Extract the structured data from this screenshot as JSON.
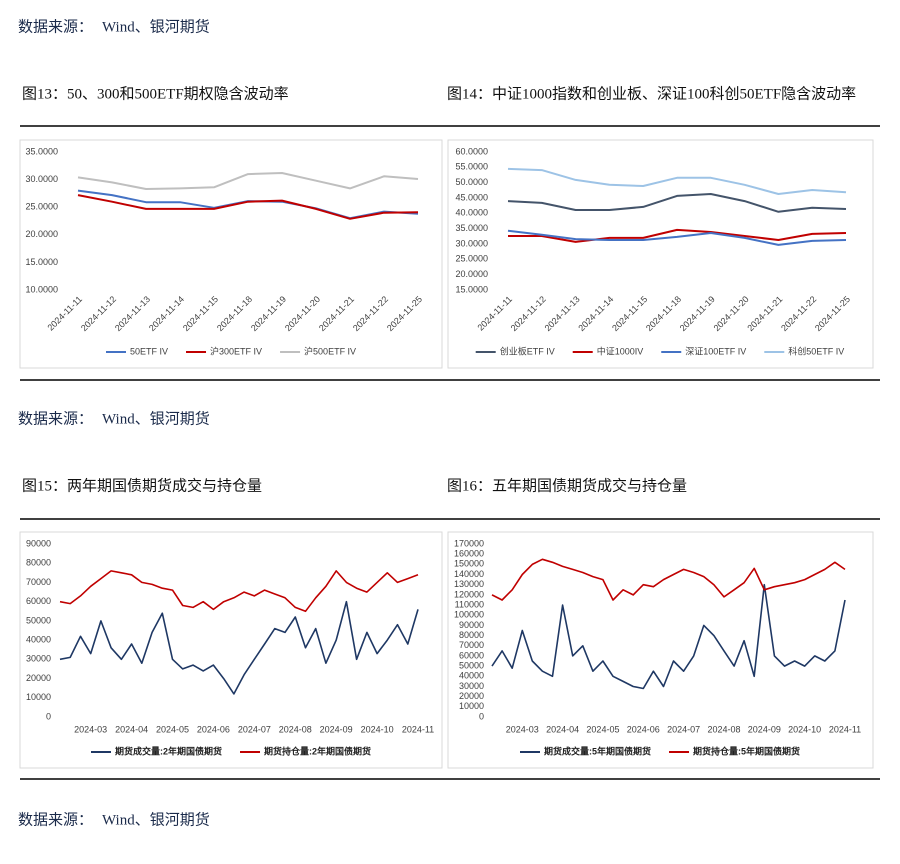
{
  "source_notes": [
    {
      "label": "数据来源：",
      "value": "Wind、银河期货"
    },
    {
      "label": "数据来源：",
      "value": "Wind、银河期货"
    },
    {
      "label": "数据来源：",
      "value": "Wind、银河期货"
    }
  ],
  "chart_data": [
    {
      "type": "line",
      "title": "图13：50、300和500ETF期权隐含波动率",
      "categories": [
        "2024-11-11",
        "2024-11-12",
        "2024-11-13",
        "2024-11-14",
        "2024-11-15",
        "2024-11-18",
        "2024-11-19",
        "2024-11-20",
        "2024-11-21",
        "2024-11-22",
        "2024-11-25"
      ],
      "series": [
        {
          "name": "50ETF IV",
          "color": "#4472c4",
          "values": [
            28.0,
            27.2,
            25.9,
            25.9,
            24.9,
            26.1,
            26.0,
            24.8,
            23.0,
            24.2,
            23.8
          ]
        },
        {
          "name": "沪300ETF IV",
          "color": "#c00000",
          "values": [
            27.2,
            26.0,
            24.7,
            24.7,
            24.7,
            26.0,
            26.2,
            24.7,
            22.9,
            24.0,
            24.1
          ]
        },
        {
          "name": "沪500ETF IV",
          "color": "#bfbfbf",
          "values": [
            30.4,
            29.5,
            28.3,
            28.4,
            28.6,
            31.0,
            31.2,
            29.8,
            28.4,
            30.6,
            30.1
          ]
        }
      ],
      "ylim": [
        10,
        35
      ],
      "yticks": [
        {
          "value": 10,
          "label": "10.0000"
        },
        {
          "value": 15,
          "label": "15.0000"
        },
        {
          "value": 20,
          "label": "20.0000"
        },
        {
          "value": 25,
          "label": "25.0000"
        },
        {
          "value": 30,
          "label": "30.0000"
        },
        {
          "value": 35,
          "label": "35.0000"
        }
      ],
      "grid": false,
      "legend": "bottom"
    },
    {
      "type": "line",
      "title": "图14：中证1000指数和创业板、深证100科创50ETF隐含波动率",
      "categories": [
        "2024-11-11",
        "2024-11-12",
        "2024-11-13",
        "2024-11-14",
        "2024-11-15",
        "2024-11-18",
        "2024-11-19",
        "2024-11-20",
        "2024-11-21",
        "2024-11-22",
        "2024-11-25"
      ],
      "series": [
        {
          "name": "创业板ETF IV",
          "color": "#44546a",
          "values": [
            44.0,
            43.4,
            41.1,
            41.1,
            42.1,
            45.7,
            46.3,
            44.0,
            40.5,
            41.8,
            41.4
          ]
        },
        {
          "name": "中证1000IV",
          "color": "#c00000",
          "values": [
            32.6,
            32.6,
            30.7,
            32.0,
            32.0,
            34.6,
            33.9,
            32.6,
            31.3,
            33.3,
            33.6
          ]
        },
        {
          "name": "深证100ETF IV",
          "color": "#4472c4",
          "values": [
            34.3,
            33.0,
            31.6,
            31.3,
            31.3,
            32.3,
            33.6,
            32.0,
            29.7,
            31.0,
            31.3
          ]
        },
        {
          "name": "科创50ETF IV",
          "color": "#9dc3e6",
          "values": [
            54.5,
            54.1,
            50.9,
            49.3,
            48.9,
            51.6,
            51.6,
            49.3,
            46.3,
            47.6,
            46.9
          ]
        }
      ],
      "ylim": [
        15,
        60
      ],
      "yticks": [
        {
          "value": 15,
          "label": "15.0000"
        },
        {
          "value": 20,
          "label": "20.0000"
        },
        {
          "value": 25,
          "label": "25.0000"
        },
        {
          "value": 30,
          "label": "30.0000"
        },
        {
          "value": 35,
          "label": "35.0000"
        },
        {
          "value": 40,
          "label": "40.0000"
        },
        {
          "value": 45,
          "label": "45.0000"
        },
        {
          "value": 50,
          "label": "50.0000"
        },
        {
          "value": 55,
          "label": "55.0000"
        },
        {
          "value": 60,
          "label": "60.0000"
        }
      ],
      "grid": false,
      "legend": "bottom"
    },
    {
      "type": "line",
      "title": "图15：两年期国债期货成交与持仓量",
      "categories": [
        null,
        null,
        null,
        "2024-03",
        null,
        null,
        null,
        "2024-04",
        null,
        null,
        null,
        "2024-05",
        null,
        null,
        null,
        "2024-06",
        null,
        null,
        null,
        "2024-07",
        null,
        null,
        null,
        "2024-08",
        null,
        null,
        null,
        "2024-09",
        null,
        null,
        null,
        "2024-10",
        null,
        null,
        null,
        "2024-11"
      ],
      "series": [
        {
          "name": "期货成交量:2年期国债期货",
          "color": "#1f3864",
          "values": [
            30000,
            31000,
            42000,
            33000,
            50000,
            36000,
            30000,
            38000,
            28000,
            44000,
            54000,
            30000,
            25000,
            27000,
            24000,
            27000,
            20000,
            12000,
            22000,
            30000,
            38000,
            46000,
            44000,
            52000,
            36000,
            46000,
            28000,
            40000,
            60000,
            30000,
            44000,
            33000,
            40000,
            48000,
            38000,
            56000
          ]
        },
        {
          "name": "期货持仓量:2年期国债期货",
          "color": "#c00000",
          "values": [
            60000,
            59000,
            63000,
            68000,
            72000,
            76000,
            75000,
            74000,
            70000,
            69000,
            67000,
            66000,
            58000,
            57000,
            60000,
            56000,
            60000,
            62000,
            65000,
            63000,
            66000,
            64000,
            62000,
            57000,
            55000,
            62000,
            68000,
            76000,
            70000,
            67000,
            65000,
            70000,
            75000,
            70000,
            72000,
            74000
          ]
        }
      ],
      "ylim": [
        0,
        90000
      ],
      "yticks": [
        0,
        10000,
        20000,
        30000,
        40000,
        50000,
        60000,
        70000,
        80000,
        90000
      ],
      "grid": false,
      "legend": "bottom"
    },
    {
      "type": "line",
      "title": "图16：五年期国债期货成交与持仓量",
      "categories": [
        null,
        null,
        null,
        "2024-03",
        null,
        null,
        null,
        "2024-04",
        null,
        null,
        null,
        "2024-05",
        null,
        null,
        null,
        "2024-06",
        null,
        null,
        null,
        "2024-07",
        null,
        null,
        null,
        "2024-08",
        null,
        null,
        null,
        "2024-09",
        null,
        null,
        null,
        "2024-10",
        null,
        null,
        null,
        "2024-11"
      ],
      "series": [
        {
          "name": "期货成交量:5年期国债期货",
          "color": "#1f3864",
          "values": [
            50000,
            65000,
            48000,
            85000,
            55000,
            45000,
            40000,
            110000,
            60000,
            70000,
            45000,
            55000,
            40000,
            35000,
            30000,
            28000,
            45000,
            30000,
            55000,
            45000,
            60000,
            90000,
            80000,
            65000,
            50000,
            75000,
            40000,
            130000,
            60000,
            50000,
            55000,
            50000,
            60000,
            55000,
            65000,
            115000
          ]
        },
        {
          "name": "期货持仓量:5年期国债期货",
          "color": "#c00000",
          "values": [
            120000,
            115000,
            125000,
            140000,
            150000,
            155000,
            152000,
            148000,
            145000,
            142000,
            138000,
            135000,
            115000,
            125000,
            120000,
            130000,
            128000,
            135000,
            140000,
            145000,
            142000,
            138000,
            130000,
            118000,
            125000,
            132000,
            146000,
            125000,
            128000,
            130000,
            132000,
            135000,
            140000,
            145000,
            152000,
            145000
          ]
        }
      ],
      "ylim": [
        0,
        170000
      ],
      "yticks": [
        0,
        10000,
        20000,
        30000,
        40000,
        50000,
        60000,
        70000,
        80000,
        90000,
        100000,
        110000,
        120000,
        130000,
        140000,
        150000,
        160000,
        170000
      ],
      "grid": false,
      "legend": "bottom"
    }
  ]
}
